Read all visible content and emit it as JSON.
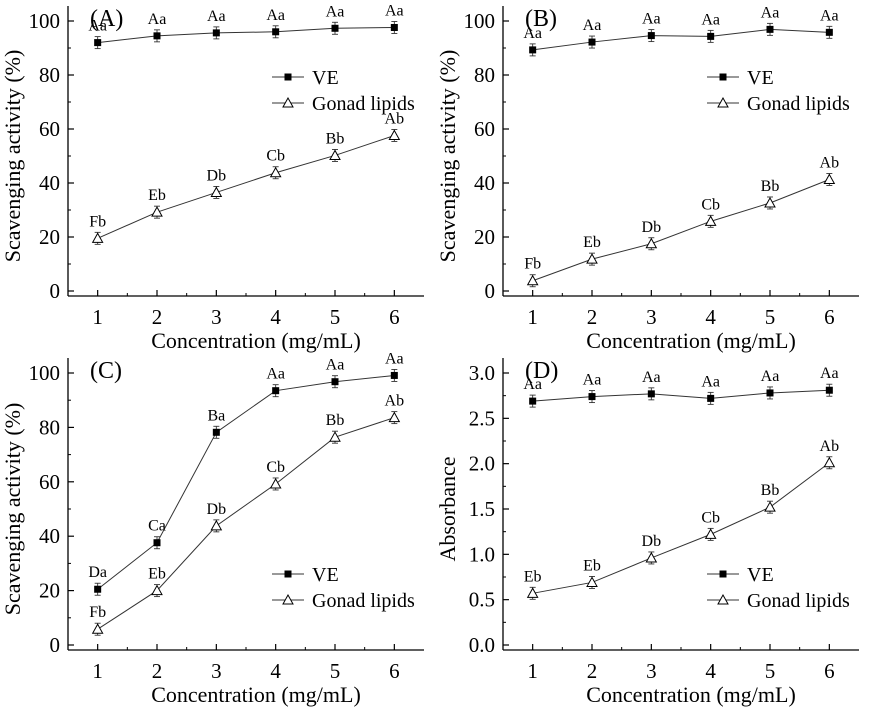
{
  "chart_data": [
    {
      "panel": "(A)",
      "type": "line",
      "xlabel": "Concentration (mg/mL)",
      "ylabel": "Scavenging activity (%)",
      "x": [
        1,
        2,
        3,
        4,
        5,
        6
      ],
      "xlim": [
        0.5,
        6.5
      ],
      "ylim": [
        0,
        100
      ],
      "yticks": [
        0,
        20,
        40,
        60,
        80,
        100
      ],
      "legend": "right-middle",
      "series": [
        {
          "name": "VE",
          "marker": "filled-square",
          "values": [
            92,
            94.5,
            95.6,
            96,
            97.3,
            97.6
          ],
          "labels": [
            "Aa",
            "Aa",
            "Aa",
            "Aa",
            "Aa",
            "Aa"
          ]
        },
        {
          "name": "Gonad lipids",
          "marker": "open-triangle",
          "values": [
            19.5,
            29.2,
            36.5,
            43.8,
            50.2,
            57.6
          ],
          "labels": [
            "Fb",
            "Eb",
            "Db",
            "Cb",
            "Bb",
            "Ab"
          ]
        }
      ]
    },
    {
      "panel": "(B)",
      "type": "line",
      "xlabel": "Concentration (mg/mL)",
      "ylabel": "Scavenging activity (%)",
      "x": [
        1,
        2,
        3,
        4,
        5,
        6
      ],
      "xlim": [
        0.5,
        6.5
      ],
      "ylim": [
        0,
        100
      ],
      "yticks": [
        0,
        20,
        40,
        60,
        80,
        100
      ],
      "legend": "right-middle",
      "series": [
        {
          "name": "VE",
          "marker": "filled-square",
          "values": [
            89.3,
            92.2,
            94.6,
            94.3,
            96.9,
            95.8
          ],
          "labels": [
            "Aa",
            "Aa",
            "Aa",
            "Aa",
            "Aa",
            "Aa"
          ]
        },
        {
          "name": "Gonad lipids",
          "marker": "open-triangle",
          "values": [
            3.8,
            11.8,
            17.5,
            25.8,
            32.6,
            41.3
          ],
          "labels": [
            "Fb",
            "Eb",
            "Db",
            "Cb",
            "Bb",
            "Ab"
          ]
        }
      ]
    },
    {
      "panel": "(C)",
      "type": "line",
      "xlabel": "Concentration (mg/mL)",
      "ylabel": "Scavenging activity (%)",
      "x": [
        1,
        2,
        3,
        4,
        5,
        6
      ],
      "xlim": [
        0.5,
        6.5
      ],
      "ylim": [
        0,
        100
      ],
      "yticks": [
        0,
        20,
        40,
        60,
        80,
        100
      ],
      "legend": "bottom-right",
      "series": [
        {
          "name": "VE",
          "marker": "filled-square",
          "values": [
            20.5,
            37.6,
            78.2,
            93.5,
            96.8,
            99.1
          ],
          "labels": [
            "Da",
            "Ca",
            "Ba",
            "Aa",
            "Aa",
            "Aa"
          ]
        },
        {
          "name": "Gonad lipids",
          "marker": "open-triangle",
          "values": [
            5.8,
            20,
            43.8,
            59.2,
            76.4,
            83.6
          ],
          "labels": [
            "Fb",
            "Eb",
            "Db",
            "Cb",
            "Bb",
            "Ab"
          ]
        }
      ]
    },
    {
      "panel": "(D)",
      "type": "line",
      "xlabel": "Concentration (mg/mL)",
      "ylabel": "Absorbance",
      "x": [
        1,
        2,
        3,
        4,
        5,
        6
      ],
      "xlim": [
        0.5,
        6.5
      ],
      "ylim": [
        0,
        3.0
      ],
      "yticks": [
        0.0,
        0.5,
        1.0,
        1.5,
        2.0,
        2.5,
        3.0
      ],
      "legend": "bottom-right",
      "series": [
        {
          "name": "VE",
          "marker": "filled-square",
          "values": [
            2.69,
            2.74,
            2.77,
            2.72,
            2.78,
            2.81
          ],
          "labels": [
            "Aa",
            "Aa",
            "Aa",
            "Aa",
            "Aa",
            "Aa"
          ]
        },
        {
          "name": "Gonad lipids",
          "marker": "open-triangle",
          "values": [
            0.57,
            0.69,
            0.96,
            1.22,
            1.52,
            2.01
          ],
          "labels": [
            "Eb",
            "Eb",
            "Db",
            "Cb",
            "Bb",
            "Ab"
          ]
        }
      ]
    }
  ]
}
